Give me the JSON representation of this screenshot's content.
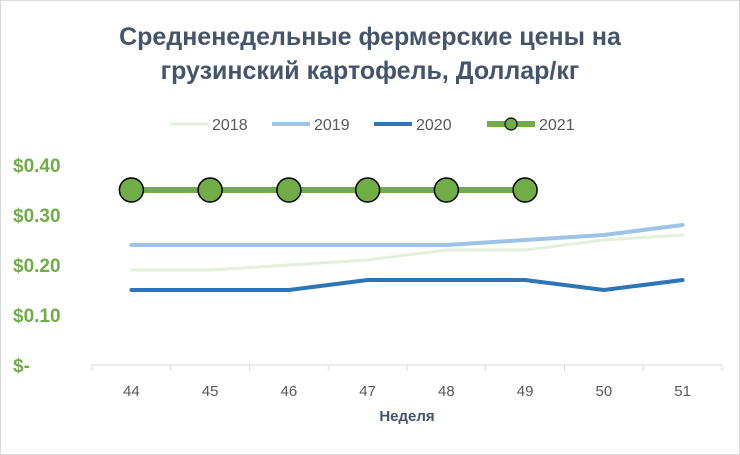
{
  "chart_data": {
    "type": "line",
    "title_line1": "Средненедельные фермерские цены на",
    "title_line2": "грузинский картофель, Доллар/кг",
    "xlabel": "Неделя",
    "ylabel": "",
    "categories": [
      "44",
      "45",
      "46",
      "47",
      "48",
      "49",
      "50",
      "51"
    ],
    "ylim": [
      0,
      0.4
    ],
    "yticks": [
      0,
      0.1,
      0.2,
      0.3,
      0.4
    ],
    "ytick_labels": [
      "$-",
      "$0.10",
      "$0.20",
      "$0.30",
      "$0.40"
    ],
    "grid": false,
    "legend_position": "top",
    "series": [
      {
        "name": "2018",
        "values": [
          0.19,
          0.19,
          0.2,
          0.21,
          0.23,
          0.23,
          0.25,
          0.26
        ],
        "color": "#e2efda",
        "markers": false
      },
      {
        "name": "2019",
        "values": [
          0.24,
          0.24,
          0.24,
          0.24,
          0.24,
          0.25,
          0.26,
          0.28
        ],
        "color": "#9dc3e6",
        "markers": false
      },
      {
        "name": "2020",
        "values": [
          0.15,
          0.15,
          0.15,
          0.17,
          0.17,
          0.17,
          0.15,
          0.17
        ],
        "color": "#2e75b6",
        "markers": false
      },
      {
        "name": "2021",
        "values": [
          0.35,
          0.35,
          0.35,
          0.35,
          0.35,
          0.35,
          null,
          null
        ],
        "color": "#70ad47",
        "markers": true
      }
    ]
  }
}
